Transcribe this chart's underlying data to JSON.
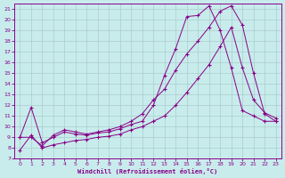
{
  "background_color": "#c8ecec",
  "line_color": "#880088",
  "grid_color": "#aacccc",
  "xlabel": "Windchill (Refroidissement éolien,°C)",
  "xlim": [
    -0.5,
    23.5
  ],
  "ylim": [
    7,
    21.5
  ],
  "xticks": [
    0,
    1,
    2,
    3,
    4,
    5,
    6,
    7,
    8,
    9,
    10,
    11,
    12,
    13,
    14,
    15,
    16,
    17,
    18,
    19,
    20,
    21,
    22,
    23
  ],
  "yticks": [
    7,
    8,
    9,
    10,
    11,
    12,
    13,
    14,
    15,
    16,
    17,
    18,
    19,
    20,
    21
  ],
  "curve1_x": [
    0,
    1,
    2,
    3,
    4,
    5,
    6,
    7,
    8,
    9,
    10,
    11,
    12,
    13,
    14,
    15,
    16,
    17,
    18,
    19,
    20,
    21,
    22,
    23
  ],
  "curve1_y": [
    9.0,
    11.8,
    8.5,
    9.0,
    9.5,
    9.3,
    9.2,
    9.4,
    9.5,
    9.8,
    10.2,
    10.5,
    12.0,
    14.8,
    17.3,
    20.3,
    20.4,
    21.3,
    19.0,
    15.5,
    11.5,
    11.0,
    10.5,
    10.5
  ],
  "curve2_x": [
    0,
    1,
    2,
    3,
    4,
    5,
    6,
    7,
    8,
    9,
    10,
    11,
    12,
    13,
    14,
    15,
    16,
    17,
    18,
    19,
    20,
    21,
    22,
    23
  ],
  "curve2_y": [
    9.0,
    9.0,
    8.2,
    9.2,
    9.7,
    9.5,
    9.3,
    9.5,
    9.7,
    10.0,
    10.5,
    11.2,
    12.5,
    13.5,
    15.3,
    16.8,
    18.0,
    19.3,
    20.8,
    21.3,
    19.5,
    15.0,
    11.2,
    10.5
  ],
  "curve3_x": [
    0,
    1,
    2,
    3,
    4,
    5,
    6,
    7,
    8,
    9,
    10,
    11,
    12,
    13,
    14,
    15,
    16,
    17,
    18,
    19,
    20,
    21,
    22,
    23
  ],
  "curve3_y": [
    7.8,
    9.2,
    8.0,
    8.3,
    8.5,
    8.7,
    8.8,
    9.0,
    9.1,
    9.3,
    9.7,
    10.0,
    10.5,
    11.0,
    12.0,
    13.2,
    14.5,
    15.8,
    17.5,
    19.3,
    15.5,
    12.5,
    11.3,
    10.8
  ]
}
